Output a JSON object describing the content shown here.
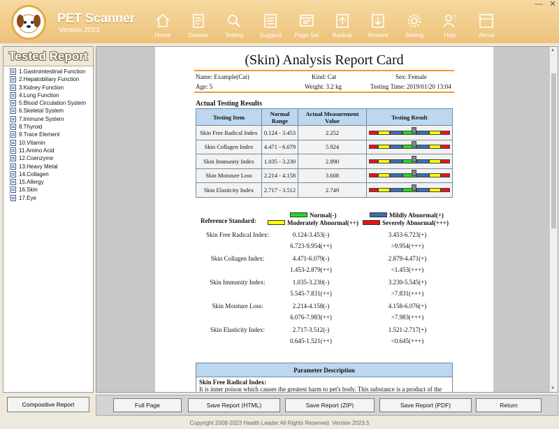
{
  "app": {
    "name": "PET Scanner",
    "version": "Version 2023"
  },
  "nav": [
    {
      "label": "Home",
      "icon": "home-icon"
    },
    {
      "label": "Dossier",
      "icon": "dossier-icon"
    },
    {
      "label": "Testing",
      "icon": "testing-icon"
    },
    {
      "label": "Suggest",
      "icon": "suggest-icon"
    },
    {
      "label": "Page Set",
      "icon": "page-set-icon"
    },
    {
      "label": "Backup",
      "icon": "backup-icon"
    },
    {
      "label": "Restore",
      "icon": "restore-icon"
    },
    {
      "label": "Setting",
      "icon": "gear-icon"
    },
    {
      "label": "Help",
      "icon": "help-icon"
    },
    {
      "label": "About",
      "icon": "about-icon"
    }
  ],
  "window": {
    "minimize": "—",
    "close": "✕"
  },
  "sidebar": {
    "title": "Tested Report",
    "items": [
      "1.Gastrointestinal Function",
      "2.Hepatobiliary Function",
      "3.Kidney Function",
      "4.Lung Function",
      "5.Blood Circulation System",
      "6.Skeletal System",
      "7.Immune System",
      "8.Thyroid",
      "9.Trace Element",
      "10.Vitamin",
      "11.Amino Acid",
      "12.Coenzyme",
      "13.Heavy Metal",
      "14.Collagen",
      "15.Allergy",
      "16.Skin",
      "17.Eye"
    ],
    "compositive_button": "Compositive Report"
  },
  "report": {
    "title": "(Skin) Analysis Report Card",
    "name": "Name: Example(Cat)",
    "kind": "Kind: Cat",
    "sex": "Sex: Female",
    "age": "Age: 5",
    "weight": "Weight: 3.2 kg",
    "testing_time": "Testing Time: 2019/01/20 13:04",
    "results_title": "Actual Testing Results",
    "headers": [
      "Testing Item",
      "Normal Range",
      "Actual Measurement Value",
      "Testing Result"
    ],
    "rows": [
      {
        "item": "Skin Free Radical Index",
        "range": "0.124 - 3.453",
        "value": "2.252",
        "level": 0.55
      },
      {
        "item": "Skin Collagen Index",
        "range": "4.471 - 6.079",
        "value": "5.924",
        "level": 0.55
      },
      {
        "item": "Skin Immunity Index",
        "range": "1.035 - 3.230",
        "value": "2.890",
        "level": 0.55
      },
      {
        "item": "Skin Moisture Loss",
        "range": "2.214 - 4.158",
        "value": "3.608",
        "level": 0.55
      },
      {
        "item": "Skin Elasticity Index",
        "range": "2.717 - 3.512",
        "value": "2.749",
        "level": 0.55
      }
    ],
    "reference_label": "Reference Standard:",
    "legend": {
      "normal": "Normal(-)",
      "mild": "Mildly Abnormal(+)",
      "moderate": "Moderately Abnormal(++)",
      "severe": "Severely Abnormal(+++)"
    },
    "colors": {
      "normal": "#22dd22",
      "mild": "#3a6fb5",
      "moderate": "#ffff00",
      "severe": "#ee1111"
    },
    "reference": [
      {
        "name": "Skin Free Radical Index:",
        "normal": "0.124-3.453(-)",
        "mild": "3.453-6.723(+)",
        "moderate": "6.723-9.954(++)",
        "severe": ">9.954(+++)"
      },
      {
        "name": "Skin Collagen Index:",
        "normal": "4.471-6.079(-)",
        "mild": "2.879-4.471(+)",
        "moderate": "1.453-2.879(++)",
        "severe": "<1.453(+++)"
      },
      {
        "name": "Skin Immunity Index:",
        "normal": "1.035-3.230(-)",
        "mild": "3.230-5.545(+)",
        "moderate": "5.545-7.831(++)",
        "severe": ">7.831(+++)"
      },
      {
        "name": "Skin Moisture Loss:",
        "normal": "2.214-4.158(-)",
        "mild": "4.158-6.076(+)",
        "moderate": "6.076-7.983(++)",
        "severe": ">7.983(+++)"
      },
      {
        "name": "Skin Elasticity Index:",
        "normal": "2.717-3.512(-)",
        "mild": "1.521-2.717(+)",
        "moderate": "0.645-1.521(++)",
        "severe": "<0.645(+++)"
      }
    ],
    "param_title": "Parameter Description",
    "param_heading": "Skin Free Radical Index:",
    "param_text": "It is inner poison which causes the greatest harm to pet's body. This substance is a product of the"
  },
  "buttons": [
    "Full Page",
    "Save Report (HTML)",
    "Save Report (ZIP)",
    "Save Report (PDF)",
    "Return"
  ],
  "footer": "Copyright 2008-2023 Health Leader.All Rights Reserved. Version 2023.5"
}
